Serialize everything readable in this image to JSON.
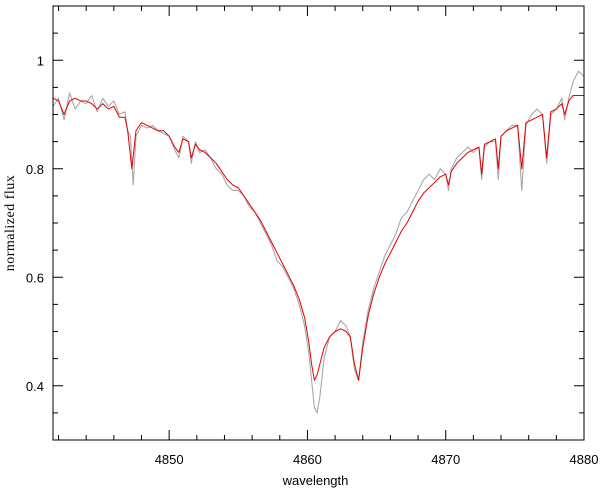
{
  "chart_data": {
    "type": "line",
    "title": "",
    "xlabel": "wavelength",
    "ylabel": "normalized flux",
    "xlim": [
      4841.6,
      4880
    ],
    "ylim": [
      0.3,
      1.1
    ],
    "x_ticks": [
      4850,
      4860,
      4870,
      4880
    ],
    "y_ticks": [
      0.4,
      0.6,
      0.8,
      1
    ],
    "x_tick_labels": [
      "4850",
      "4860",
      "4870",
      "4880"
    ],
    "y_tick_labels": [
      "0.4",
      "0.6",
      "0.8",
      "1"
    ],
    "x_minor_step": 2,
    "y_minor_step": 0.05,
    "grid": false,
    "legend": "none",
    "series": [
      {
        "color": "#a8a8a8",
        "points": [
          [
            4841.6,
            0.915
          ],
          [
            4842.0,
            0.93
          ],
          [
            4842.4,
            0.89
          ],
          [
            4842.8,
            0.94
          ],
          [
            4843.2,
            0.91
          ],
          [
            4843.6,
            0.925
          ],
          [
            4844.0,
            0.92
          ],
          [
            4844.4,
            0.935
          ],
          [
            4844.8,
            0.905
          ],
          [
            4845.2,
            0.93
          ],
          [
            4845.6,
            0.915
          ],
          [
            4846.0,
            0.925
          ],
          [
            4846.4,
            0.9
          ],
          [
            4846.8,
            0.905
          ],
          [
            4847.0,
            0.87
          ],
          [
            4847.2,
            0.86
          ],
          [
            4847.4,
            0.77
          ],
          [
            4847.6,
            0.86
          ],
          [
            4848.0,
            0.88
          ],
          [
            4848.4,
            0.875
          ],
          [
            4848.8,
            0.88
          ],
          [
            4849.2,
            0.87
          ],
          [
            4849.6,
            0.865
          ],
          [
            4850.0,
            0.86
          ],
          [
            4850.4,
            0.835
          ],
          [
            4850.7,
            0.82
          ],
          [
            4851.0,
            0.86
          ],
          [
            4851.4,
            0.85
          ],
          [
            4851.6,
            0.81
          ],
          [
            4851.9,
            0.85
          ],
          [
            4852.2,
            0.83
          ],
          [
            4852.6,
            0.835
          ],
          [
            4853.0,
            0.82
          ],
          [
            4853.4,
            0.8
          ],
          [
            4853.8,
            0.79
          ],
          [
            4854.2,
            0.77
          ],
          [
            4854.6,
            0.76
          ],
          [
            4855.0,
            0.76
          ],
          [
            4855.4,
            0.75
          ],
          [
            4855.8,
            0.73
          ],
          [
            4856.2,
            0.72
          ],
          [
            4856.6,
            0.7
          ],
          [
            4857.0,
            0.68
          ],
          [
            4857.4,
            0.66
          ],
          [
            4857.8,
            0.63
          ],
          [
            4858.2,
            0.62
          ],
          [
            4858.6,
            0.6
          ],
          [
            4859.0,
            0.58
          ],
          [
            4859.4,
            0.55
          ],
          [
            4859.8,
            0.51
          ],
          [
            4860.1,
            0.46
          ],
          [
            4860.3,
            0.41
          ],
          [
            4860.5,
            0.36
          ],
          [
            4860.7,
            0.35
          ],
          [
            4860.9,
            0.38
          ],
          [
            4861.2,
            0.45
          ],
          [
            4861.6,
            0.49
          ],
          [
            4862.0,
            0.5
          ],
          [
            4862.4,
            0.52
          ],
          [
            4862.8,
            0.51
          ],
          [
            4863.1,
            0.49
          ],
          [
            4863.4,
            0.43
          ],
          [
            4863.7,
            0.41
          ],
          [
            4864.0,
            0.48
          ],
          [
            4864.4,
            0.54
          ],
          [
            4864.8,
            0.58
          ],
          [
            4865.2,
            0.61
          ],
          [
            4865.6,
            0.64
          ],
          [
            4866.0,
            0.66
          ],
          [
            4866.4,
            0.68
          ],
          [
            4866.8,
            0.71
          ],
          [
            4867.2,
            0.72
          ],
          [
            4867.6,
            0.74
          ],
          [
            4868.0,
            0.76
          ],
          [
            4868.4,
            0.78
          ],
          [
            4868.8,
            0.79
          ],
          [
            4869.2,
            0.78
          ],
          [
            4869.6,
            0.8
          ],
          [
            4870.0,
            0.79
          ],
          [
            4870.2,
            0.76
          ],
          [
            4870.4,
            0.8
          ],
          [
            4870.8,
            0.82
          ],
          [
            4871.2,
            0.83
          ],
          [
            4871.6,
            0.84
          ],
          [
            4872.0,
            0.83
          ],
          [
            4872.4,
            0.84
          ],
          [
            4872.6,
            0.78
          ],
          [
            4872.8,
            0.84
          ],
          [
            4873.2,
            0.85
          ],
          [
            4873.6,
            0.85
          ],
          [
            4873.8,
            0.78
          ],
          [
            4874.0,
            0.86
          ],
          [
            4874.4,
            0.87
          ],
          [
            4874.8,
            0.88
          ],
          [
            4875.2,
            0.88
          ],
          [
            4875.5,
            0.76
          ],
          [
            4875.8,
            0.88
          ],
          [
            4876.2,
            0.9
          ],
          [
            4876.6,
            0.91
          ],
          [
            4877.0,
            0.9
          ],
          [
            4877.3,
            0.81
          ],
          [
            4877.6,
            0.9
          ],
          [
            4878.0,
            0.91
          ],
          [
            4878.4,
            0.93
          ],
          [
            4878.6,
            0.89
          ],
          [
            4878.9,
            0.93
          ],
          [
            4879.2,
            0.96
          ],
          [
            4879.6,
            0.98
          ],
          [
            4880.0,
            0.97
          ]
        ]
      },
      {
        "color": "#e60000",
        "points": [
          [
            4841.6,
            0.93
          ],
          [
            4842.0,
            0.925
          ],
          [
            4842.4,
            0.9
          ],
          [
            4842.8,
            0.925
          ],
          [
            4843.2,
            0.93
          ],
          [
            4843.6,
            0.925
          ],
          [
            4844.0,
            0.925
          ],
          [
            4844.4,
            0.92
          ],
          [
            4844.8,
            0.91
          ],
          [
            4845.2,
            0.92
          ],
          [
            4845.6,
            0.91
          ],
          [
            4846.0,
            0.915
          ],
          [
            4846.4,
            0.895
          ],
          [
            4846.8,
            0.895
          ],
          [
            4847.0,
            0.87
          ],
          [
            4847.3,
            0.8
          ],
          [
            4847.6,
            0.87
          ],
          [
            4848.0,
            0.885
          ],
          [
            4848.4,
            0.88
          ],
          [
            4848.8,
            0.875
          ],
          [
            4849.2,
            0.87
          ],
          [
            4849.6,
            0.87
          ],
          [
            4850.0,
            0.86
          ],
          [
            4850.4,
            0.84
          ],
          [
            4850.7,
            0.83
          ],
          [
            4851.0,
            0.855
          ],
          [
            4851.4,
            0.85
          ],
          [
            4851.6,
            0.82
          ],
          [
            4851.9,
            0.845
          ],
          [
            4852.2,
            0.835
          ],
          [
            4852.6,
            0.83
          ],
          [
            4853.0,
            0.82
          ],
          [
            4853.4,
            0.81
          ],
          [
            4853.8,
            0.795
          ],
          [
            4854.2,
            0.78
          ],
          [
            4854.6,
            0.77
          ],
          [
            4855.0,
            0.765
          ],
          [
            4855.4,
            0.75
          ],
          [
            4855.8,
            0.735
          ],
          [
            4856.2,
            0.72
          ],
          [
            4856.6,
            0.705
          ],
          [
            4857.0,
            0.685
          ],
          [
            4857.4,
            0.665
          ],
          [
            4857.8,
            0.645
          ],
          [
            4858.2,
            0.625
          ],
          [
            4858.6,
            0.605
          ],
          [
            4859.0,
            0.585
          ],
          [
            4859.4,
            0.56
          ],
          [
            4859.8,
            0.525
          ],
          [
            4860.1,
            0.48
          ],
          [
            4860.3,
            0.44
          ],
          [
            4860.5,
            0.41
          ],
          [
            4860.7,
            0.42
          ],
          [
            4860.9,
            0.44
          ],
          [
            4861.2,
            0.47
          ],
          [
            4861.6,
            0.49
          ],
          [
            4862.0,
            0.5
          ],
          [
            4862.4,
            0.505
          ],
          [
            4862.8,
            0.5
          ],
          [
            4863.1,
            0.49
          ],
          [
            4863.4,
            0.44
          ],
          [
            4863.7,
            0.41
          ],
          [
            4864.0,
            0.47
          ],
          [
            4864.4,
            0.53
          ],
          [
            4864.8,
            0.57
          ],
          [
            4865.2,
            0.6
          ],
          [
            4865.6,
            0.625
          ],
          [
            4866.0,
            0.645
          ],
          [
            4866.4,
            0.665
          ],
          [
            4866.8,
            0.685
          ],
          [
            4867.2,
            0.7
          ],
          [
            4867.6,
            0.72
          ],
          [
            4868.0,
            0.74
          ],
          [
            4868.4,
            0.755
          ],
          [
            4868.8,
            0.765
          ],
          [
            4869.2,
            0.775
          ],
          [
            4869.6,
            0.785
          ],
          [
            4870.0,
            0.79
          ],
          [
            4870.2,
            0.77
          ],
          [
            4870.4,
            0.795
          ],
          [
            4870.8,
            0.81
          ],
          [
            4871.2,
            0.82
          ],
          [
            4871.6,
            0.83
          ],
          [
            4872.0,
            0.835
          ],
          [
            4872.4,
            0.84
          ],
          [
            4872.6,
            0.79
          ],
          [
            4872.8,
            0.845
          ],
          [
            4873.2,
            0.85
          ],
          [
            4873.6,
            0.855
          ],
          [
            4873.8,
            0.8
          ],
          [
            4874.0,
            0.86
          ],
          [
            4874.4,
            0.87
          ],
          [
            4874.8,
            0.875
          ],
          [
            4875.2,
            0.88
          ],
          [
            4875.5,
            0.8
          ],
          [
            4875.8,
            0.885
          ],
          [
            4876.2,
            0.89
          ],
          [
            4876.6,
            0.895
          ],
          [
            4877.0,
            0.9
          ],
          [
            4877.3,
            0.82
          ],
          [
            4877.6,
            0.905
          ],
          [
            4878.0,
            0.91
          ],
          [
            4878.4,
            0.92
          ],
          [
            4878.6,
            0.9
          ],
          [
            4878.9,
            0.925
          ],
          [
            4879.2,
            0.935
          ],
          [
            4879.6,
            0.935
          ],
          [
            4880.0,
            0.935
          ]
        ]
      }
    ]
  }
}
